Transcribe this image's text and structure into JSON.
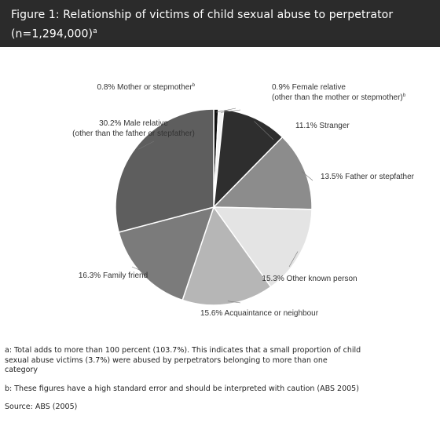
{
  "header": {
    "title_line1": "Figure 1: Relationship of victims of child sexual abuse to perpetrator",
    "title_line2": "(n=1,294,000)",
    "title_sup": "a"
  },
  "chart_data": {
    "type": "pie",
    "title": "Figure 1: Relationship of victims of child sexual abuse to perpetrator (n=1,294,000)",
    "slices": [
      {
        "label": "Mother or stepmother",
        "value": 0.8,
        "display": "0.8% Mother or stepmother",
        "sup": "b",
        "color": "#111111"
      },
      {
        "label": "Female relative (other than the mother or stepmother)",
        "value": 0.9,
        "display": "0.9% Female relative",
        "display_line2": "(other than the mother or stepmother)",
        "sup": "b",
        "color": "#f4f4f4"
      },
      {
        "label": "Stranger",
        "value": 11.1,
        "display": "11.1% Stranger",
        "color": "#2e2e2e"
      },
      {
        "label": "Father or stepfather",
        "value": 13.5,
        "display": "13.5% Father or stepfather",
        "color": "#8c8c8c"
      },
      {
        "label": "Other known person",
        "value": 15.3,
        "display": "15.3% Other known person",
        "color": "#e4e4e4"
      },
      {
        "label": "Acquaintance or neighbour",
        "value": 15.6,
        "display": "15.6% Acquaintance or neighbour",
        "color": "#b6b6b6"
      },
      {
        "label": "Family friend",
        "value": 16.3,
        "display": "16.3% Family friend",
        "color": "#7b7b7b"
      },
      {
        "label": "Male relative (other than the father or stepfather)",
        "value": 30.2,
        "display": "30.2% Male relative",
        "display_line2": "(other than the father or stepfather)",
        "color": "#5e5e5e"
      }
    ]
  },
  "footnotes": {
    "a_line1": "a: Total adds to more than 100 percent (103.7%). This indicates that a small proportion of child",
    "a_line2": "sexual abuse victims (3.7%) were abused by perpetrators belonging to more than one",
    "a_line3": "category",
    "b": "b: These figures have a high standard error and should be interpreted with caution (ABS 2005)",
    "source": "Source: ABS (2005)"
  }
}
